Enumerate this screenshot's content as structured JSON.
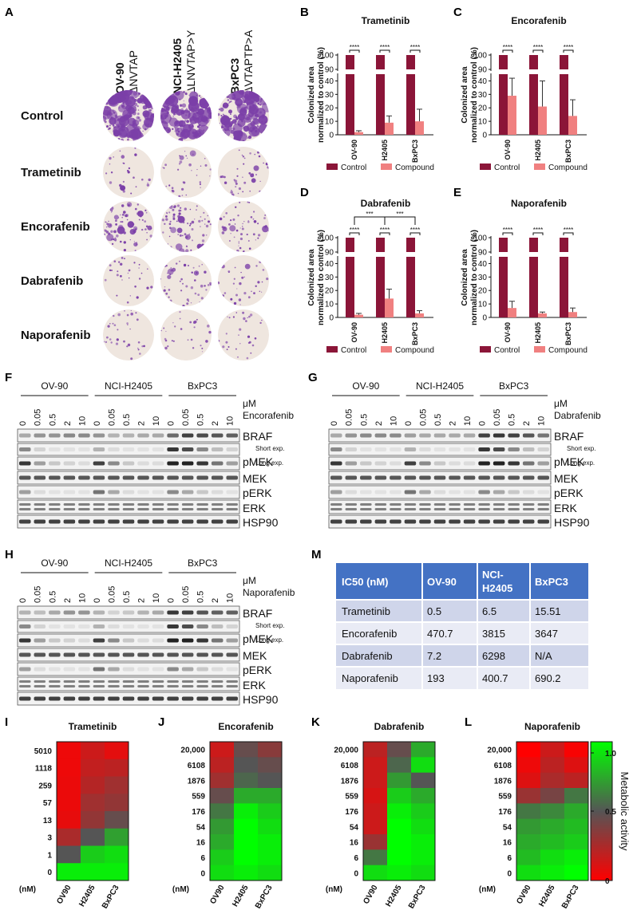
{
  "panels": {
    "A": "A",
    "B": "B",
    "C": "C",
    "D": "D",
    "E": "E",
    "F": "F",
    "G": "G",
    "H": "H",
    "M": "M",
    "I": "I",
    "J": "J",
    "K": "K",
    "L": "L"
  },
  "panel_a": {
    "cell_lines": [
      {
        "name": "OV-90",
        "mutation": "ΔNVTAP"
      },
      {
        "name": "NCI-H2405",
        "mutation": "ΔLNVTAP>Y"
      },
      {
        "name": "BxPC3",
        "mutation": "ΔVTAPTP>A"
      }
    ],
    "treatments": [
      "Control",
      "Trametinib",
      "Encorafenib",
      "Dabrafenib",
      "Naporafenib"
    ],
    "colors": {
      "stain": "#7b3fa8",
      "plate": "#efe6df"
    },
    "colony_density": [
      [
        0.95,
        0.95,
        0.9
      ],
      [
        0.04,
        0.1,
        0.12
      ],
      [
        0.4,
        0.35,
        0.22
      ],
      [
        0.06,
        0.18,
        0.08
      ],
      [
        0.08,
        0.05,
        0.06
      ]
    ]
  },
  "bar_charts": [
    {
      "panel": "B",
      "title": "Trametinib",
      "ylabel": "Colonized area normalized to control (%)",
      "categories": [
        "OV-90",
        "H2405",
        "BxPC3"
      ],
      "series": [
        {
          "name": "Control",
          "values": [
            100,
            100,
            100
          ],
          "errors": [
            0,
            0,
            0
          ]
        },
        {
          "name": "Compound",
          "values": [
            2,
            9,
            10
          ],
          "errors": [
            1,
            5,
            9
          ]
        }
      ],
      "sig": [
        "****",
        "****",
        "****"
      ],
      "extra_sig": []
    },
    {
      "panel": "C",
      "title": "Encorafenib",
      "ylabel": "Colonized area normalized to control (%)",
      "categories": [
        "OV-90",
        "H2405",
        "BxPC3"
      ],
      "series": [
        {
          "name": "Control",
          "values": [
            100,
            100,
            100
          ],
          "errors": [
            0,
            0,
            0
          ]
        },
        {
          "name": "Compound",
          "values": [
            29,
            21,
            14
          ],
          "errors": [
            13,
            19,
            12
          ]
        }
      ],
      "sig": [
        "****",
        "****",
        "****"
      ],
      "extra_sig": []
    },
    {
      "panel": "D",
      "title": "Dabrafenib",
      "ylabel": "Colonized area normalized to control (%)",
      "categories": [
        "OV-90",
        "H2405",
        "BxPC3"
      ],
      "series": [
        {
          "name": "Control",
          "values": [
            100,
            100,
            100
          ],
          "errors": [
            0,
            0,
            0
          ]
        },
        {
          "name": "Compound",
          "values": [
            2,
            14,
            3
          ],
          "errors": [
            1,
            7,
            2
          ]
        }
      ],
      "sig": [
        "****",
        "****",
        "****"
      ],
      "extra_sig": [
        "***",
        "***"
      ]
    },
    {
      "panel": "E",
      "title": "Naporafenib",
      "ylabel": "Colonized area normalized to control (%)",
      "categories": [
        "OV-90",
        "H2405",
        "BxPC3"
      ],
      "series": [
        {
          "name": "Control",
          "values": [
            100,
            100,
            100
          ],
          "errors": [
            0,
            0,
            0
          ]
        },
        {
          "name": "Compound",
          "values": [
            7,
            3,
            4
          ],
          "errors": [
            5,
            1,
            3
          ]
        }
      ],
      "sig": [
        "****",
        "****",
        "****"
      ],
      "extra_sig": []
    }
  ],
  "bar_legend": [
    "Control",
    "Compound"
  ],
  "bar_colors": {
    "control": "#8b1538",
    "compound": "#f08080"
  },
  "bar_axis": {
    "ticks": [
      "0",
      "10",
      "20",
      "30",
      "40",
      "90",
      "100"
    ]
  },
  "blots": [
    {
      "panel": "F",
      "drug": "Encorafenib"
    },
    {
      "panel": "G",
      "drug": "Dabrafenib"
    },
    {
      "panel": "H",
      "drug": "Naporafenib"
    }
  ],
  "blot_common": {
    "cell_lines": [
      "OV-90",
      "NCI-H2405",
      "BxPC3"
    ],
    "unit": "μM",
    "doses": [
      "0",
      "0.05",
      "0.5",
      "2",
      "10"
    ],
    "rows": [
      "BRAF",
      "pMEK",
      "MEK",
      "pERK",
      "ERK",
      "HSP90"
    ],
    "short_exp": "Short exp.",
    "long_exp": "Long exp."
  },
  "ic50_table": {
    "headers": [
      "IC50 (nM)",
      "OV-90",
      "NCI-H2405",
      "BxPC3"
    ],
    "rows": [
      [
        "Trametinib",
        "0.5",
        "6.5",
        "15.51"
      ],
      [
        "Encorafenib",
        "470.7",
        "3815",
        "3647"
      ],
      [
        "Dabrafenib",
        "7.2",
        "6298",
        "N/A"
      ],
      [
        "Naporafenib",
        "193",
        "400.7",
        "690.2"
      ]
    ],
    "colors": {
      "header": "#4472c4",
      "row_odd": "#cfd5ea",
      "row_even": "#e9ebf5"
    }
  },
  "heatmaps": [
    {
      "panel": "I",
      "title": "Trametinib",
      "concentrations": [
        "5010",
        "1118",
        "259",
        "57",
        "13",
        "3",
        "1",
        "0"
      ],
      "values": [
        [
          0.05,
          0.15,
          0.08
        ],
        [
          0.05,
          0.18,
          0.2
        ],
        [
          0.06,
          0.22,
          0.28
        ],
        [
          0.06,
          0.28,
          0.32
        ],
        [
          0.07,
          0.32,
          0.45
        ],
        [
          0.25,
          0.5,
          0.72
        ],
        [
          0.5,
          0.85,
          0.9
        ],
        [
          0.95,
          0.95,
          0.95
        ]
      ]
    },
    {
      "panel": "J",
      "title": "Encorafenib",
      "concentrations": [
        "20,000",
        "6108",
        "1876",
        "559",
        "176",
        "54",
        "16",
        "6",
        "0"
      ],
      "values": [
        [
          0.15,
          0.45,
          0.35
        ],
        [
          0.2,
          0.5,
          0.45
        ],
        [
          0.28,
          0.55,
          0.5
        ],
        [
          0.45,
          0.75,
          0.75
        ],
        [
          0.6,
          0.95,
          0.85
        ],
        [
          0.7,
          1.0,
          0.9
        ],
        [
          0.75,
          1.0,
          0.95
        ],
        [
          0.85,
          1.0,
          0.95
        ],
        [
          0.9,
          0.95,
          0.9
        ]
      ]
    },
    {
      "panel": "K",
      "title": "Dabrafenib",
      "concentrations": [
        "20,000",
        "6108",
        "1876",
        "559",
        "176",
        "54",
        "16",
        "6",
        "0"
      ],
      "values": [
        [
          0.2,
          0.45,
          0.75
        ],
        [
          0.15,
          0.55,
          0.9
        ],
        [
          0.15,
          0.7,
          0.5
        ],
        [
          0.12,
          0.85,
          0.75
        ],
        [
          0.15,
          0.95,
          0.85
        ],
        [
          0.15,
          1.0,
          0.9
        ],
        [
          0.3,
          1.0,
          0.95
        ],
        [
          0.6,
          1.0,
          0.95
        ],
        [
          0.9,
          0.95,
          0.9
        ]
      ]
    },
    {
      "panel": "L",
      "title": "Naporafenib",
      "concentrations": [
        "20,000",
        "6108",
        "1876",
        "559",
        "176",
        "54",
        "16",
        "6",
        "0"
      ],
      "values": [
        [
          0.0,
          0.15,
          0.02
        ],
        [
          0.05,
          0.2,
          0.1
        ],
        [
          0.1,
          0.25,
          0.2
        ],
        [
          0.3,
          0.4,
          0.6
        ],
        [
          0.6,
          0.65,
          0.75
        ],
        [
          0.7,
          0.75,
          0.8
        ],
        [
          0.75,
          0.8,
          0.85
        ],
        [
          0.8,
          0.9,
          0.95
        ],
        [
          0.9,
          0.95,
          1.0
        ]
      ]
    }
  ],
  "heatmap_common": {
    "cell_lines": [
      "OV90",
      "H2405",
      "BxPC3"
    ],
    "unit": "(nM)",
    "colorbar_label": "Metabolic activity",
    "colorbar_ticks": [
      "1.0",
      "0.5",
      "0"
    ],
    "colors": {
      "low": "#ff0000",
      "mid": "#555555",
      "high": "#00ff00"
    }
  }
}
